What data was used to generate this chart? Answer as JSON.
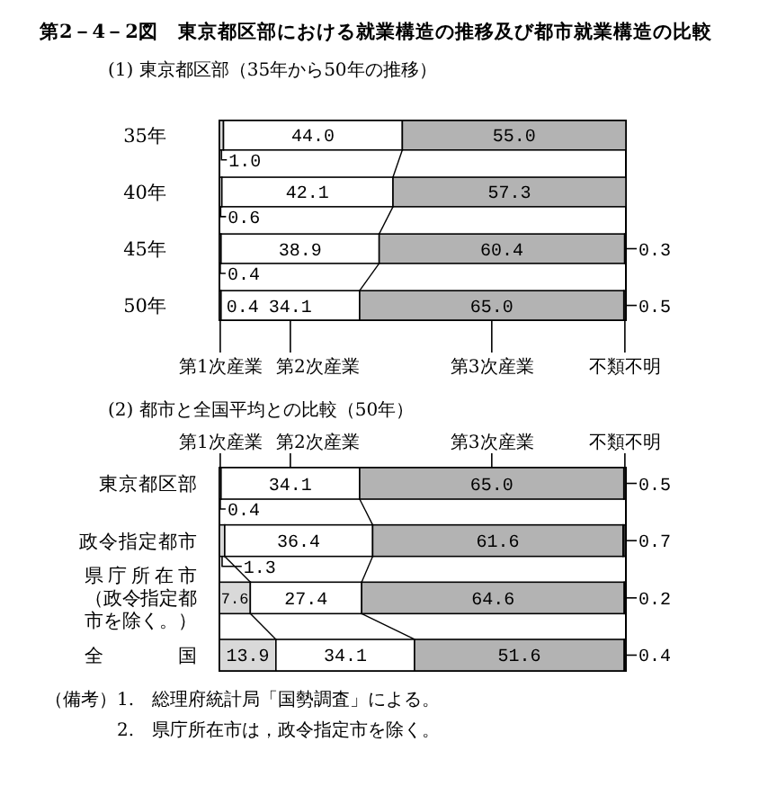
{
  "chart_data": [
    {
      "type": "bar",
      "orientation": "horizontal",
      "stacked": true,
      "title": "第2－4－2図　東京都区部における就業構造の推移及び都市就業構造の比較",
      "subtitle": "(1) 東京都区部（35年から50年の推移）",
      "categories": [
        "35年",
        "40年",
        "45年",
        "50年"
      ],
      "xlim": [
        0,
        100
      ],
      "tick_labels": "y",
      "legend": "bottom",
      "series": [
        {
          "name": "第1次産業",
          "color": "#d9d9d9",
          "values": [
            1.0,
            0.6,
            0.4,
            0.4
          ],
          "value_labels": [
            "1.0",
            "0.6",
            "0.4",
            "0.4"
          ]
        },
        {
          "name": "第2次産業",
          "color": "#ffffff",
          "values": [
            44.0,
            42.1,
            38.9,
            34.1
          ],
          "value_labels": [
            "44.0",
            "42.1",
            "38.9",
            "34.1"
          ]
        },
        {
          "name": "第3次産業",
          "color": "#b3b3b3",
          "values": [
            55.0,
            57.3,
            60.4,
            65.0
          ],
          "value_labels": [
            "55.0",
            "57.3",
            "60.4",
            "65.0"
          ]
        },
        {
          "name": "不類不明",
          "color": "#333333",
          "values": [
            null,
            null,
            0.3,
            0.5
          ],
          "value_labels": [
            null,
            null,
            "0.3",
            "0.5"
          ]
        }
      ]
    },
    {
      "type": "bar",
      "orientation": "horizontal",
      "stacked": true,
      "title": "(2) 都市と全国平均との比較（50年）",
      "categories": [
        "東京都区部",
        "政令指定都市",
        "県庁所在市（政令指定都市を除く。）",
        "全国"
      ],
      "xlim": [
        0,
        100
      ],
      "tick_labels": "y",
      "legend": "top",
      "series": [
        {
          "name": "第1次産業",
          "color": "#d9d9d9",
          "values": [
            0.4,
            1.3,
            7.6,
            13.9
          ],
          "value_labels": [
            "0.4",
            "1.3",
            "7.6",
            "13.9"
          ]
        },
        {
          "name": "第2次産業",
          "color": "#ffffff",
          "values": [
            34.1,
            36.4,
            27.4,
            34.1
          ],
          "value_labels": [
            "34.1",
            "36.4",
            "27.4",
            "34.1"
          ]
        },
        {
          "name": "第3次産業",
          "color": "#b3b3b3",
          "values": [
            65.0,
            61.6,
            64.6,
            51.6
          ],
          "value_labels": [
            "65.0",
            "61.6",
            "64.6",
            "51.6"
          ]
        },
        {
          "name": "不類不明",
          "color": "#333333",
          "values": [
            0.5,
            0.7,
            0.2,
            0.4
          ],
          "value_labels": [
            "0.5",
            "0.7",
            "0.2",
            "0.4"
          ]
        }
      ],
      "annotations": [
        "（備考）1.　総理府統計局「国勢調査」による。",
        "2.　県庁所在市は，政令指定市を除く。"
      ]
    }
  ]
}
